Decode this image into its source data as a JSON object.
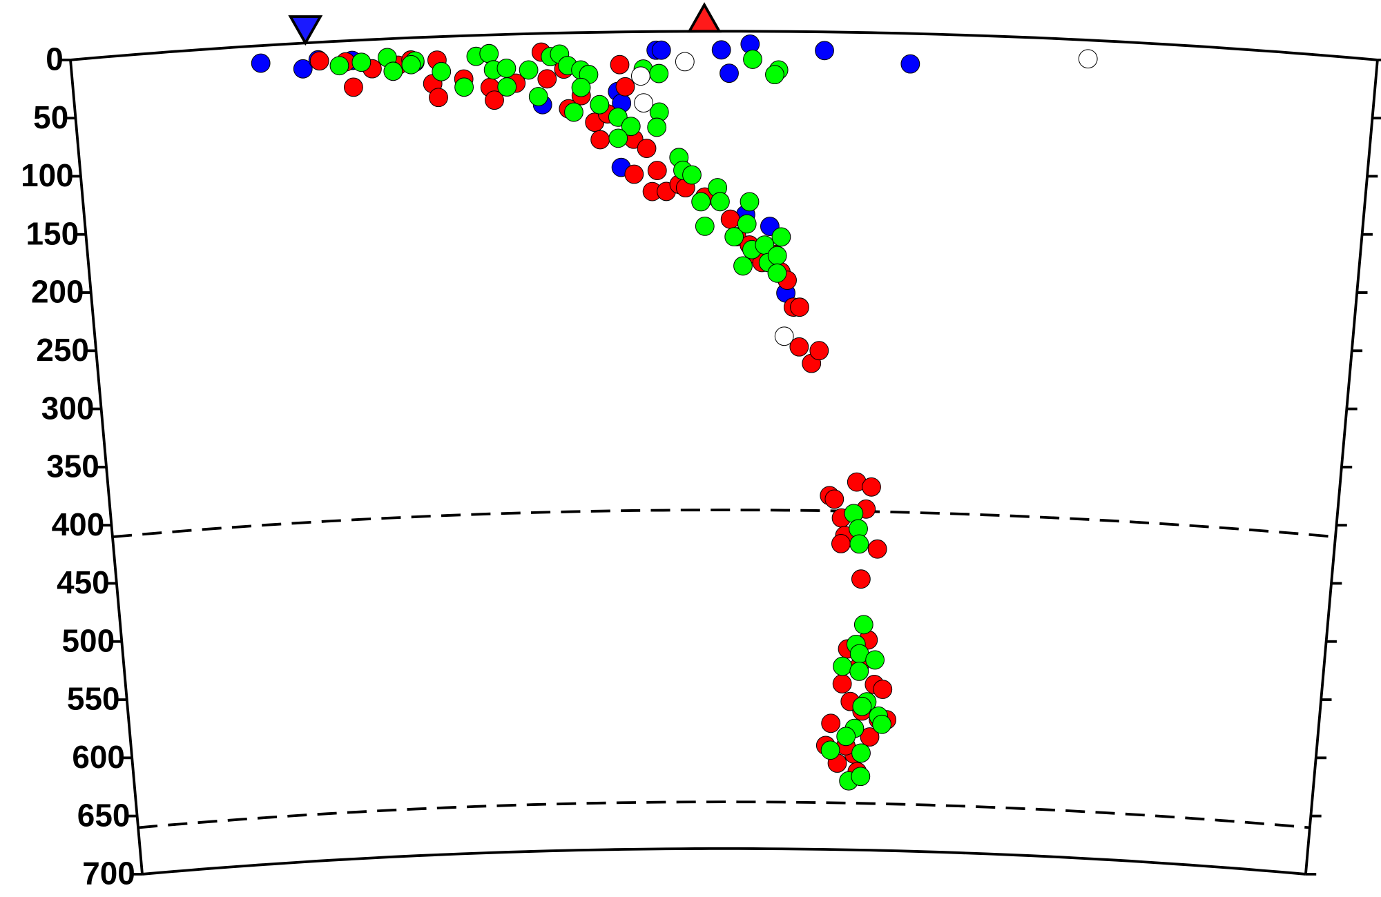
{
  "chart_data": {
    "type": "scatter",
    "earth_radius": 6371,
    "xlim": [
      0,
      100
    ],
    "ylim": [
      0,
      700
    ],
    "yticks": [
      0,
      50,
      100,
      150,
      200,
      250,
      300,
      350,
      400,
      450,
      500,
      550,
      600,
      650,
      700
    ],
    "reference_depths": [
      410,
      660
    ],
    "markers": [
      {
        "x": 18,
        "color": "#1a1aff",
        "shape": "triangle-down"
      },
      {
        "x": 48.5,
        "color": "#ff1a1a",
        "shape": "triangle-up"
      }
    ],
    "series": [
      {
        "color": "#0000ff",
        "x": [
          14.5,
          17.7,
          18.9,
          21.5,
          26.3,
          36,
          41.8,
          42.1,
          44.8,
          45.2,
          49.8,
          50.4,
          52,
          57.7,
          64.3,
          42,
          51.7,
          53.6,
          54.9
        ],
        "values": [
          15,
          22,
          15,
          17,
          21,
          61,
          51,
          61,
          16,
          16,
          16,
          36,
          11,
          16,
          26,
          116,
          157,
          167,
          224
        ]
      },
      {
        "color": "#ff0000",
        "x": [
          19,
          21,
          23,
          21.5,
          25,
          26,
          28,
          27.6,
          28,
          30,
          32,
          32.3,
          34,
          36,
          36.4,
          37.7,
          38,
          39,
          40,
          40.4,
          41,
          42,
          42.4,
          43,
          44,
          44.8,
          43,
          44.4,
          45.5,
          46.5,
          47,
          48.5,
          50.5,
          51,
          52,
          52.5,
          53,
          54,
          54.5,
          55,
          55.5,
          56,
          56,
          57,
          57.6,
          58.6,
          59,
          60.8,
          62,
          59.6,
          59.9,
          61.6,
          62.6,
          61.3,
          59.6,
          60.3,
          62,
          61.3,
          62.6,
          59.9,
          63.3,
          60.6,
          61.6,
          63,
          59,
          58.6,
          62.3,
          59.6,
          61,
          61.3,
          63.7,
          60.3
        ],
        "values": [
          16,
          18,
          25,
          40,
          23,
          19,
          20,
          40,
          52,
          37,
          45,
          56,
          42,
          16,
          39,
          31,
          65,
          54,
          77,
          92,
          70,
          28,
          47,
          92,
          100,
          119,
          122,
          137,
          137,
          131,
          134,
          142,
          161,
          176,
          183,
          191,
          198,
          191,
          206,
          213,
          236,
          236,
          270,
          284,
          273,
          397,
          400,
          385,
          389,
          416,
          431,
          408,
          442,
          468,
          438,
          528,
          520,
          543,
          558,
          558,
          562,
          573,
          581,
          588,
          592,
          611,
          603,
          626,
          618,
          633,
          588,
          611
        ]
      },
      {
        "color": "#00ff00",
        "x": [
          20.5,
          22.2,
          24.2,
          26.3,
          24.6,
          26,
          28.3,
          30,
          31,
          32,
          32.3,
          33.3,
          33.3,
          35,
          35.7,
          36.7,
          37.4,
          38,
          39,
          39.6,
          39,
          38.4,
          40.4,
          41.8,
          42.8,
          41.8,
          43.8,
          45,
          45,
          44.8,
          46.5,
          46.8,
          47.5,
          48.2,
          48.5,
          49.5,
          49.7,
          50.8,
          52,
          51.8,
          52.2,
          51.5,
          53.2,
          53.5,
          54.2,
          54.2,
          54.5,
          54.2,
          53.9,
          52.2,
          60.6,
          61,
          61.1,
          61.6,
          61,
          61.3,
          62.6,
          59.9,
          61.3,
          62,
          61.6,
          63,
          63.3,
          61,
          60.3,
          59,
          61.6,
          60.6,
          61.6
        ],
        "values": [
          21,
          19,
          16,
          20,
          28,
          23,
          30,
          44,
          18,
          16,
          30,
          29,
          45,
          31,
          54,
          20,
          18,
          28,
          32,
          36,
          47,
          68,
          62,
          73,
          81,
          91,
          32,
          36,
          69,
          82,
          108,
          119,
          123,
          146,
          167,
          134,
          146,
          176,
          146,
          165,
          187,
          201,
          183,
          198,
          192,
          207,
          176,
          33,
          37,
          24,
          412,
          425,
          438,
          507,
          524,
          532,
          537,
          543,
          547,
          573,
          577,
          585,
          592,
          596,
          603,
          615,
          617,
          641,
          637
        ]
      },
      {
        "color": "#ffffff",
        "x": [
          47,
          43.6,
          43.8,
          54.8,
          77.9
        ],
        "values": [
          26,
          38,
          61,
          261,
          16
        ]
      }
    ]
  }
}
